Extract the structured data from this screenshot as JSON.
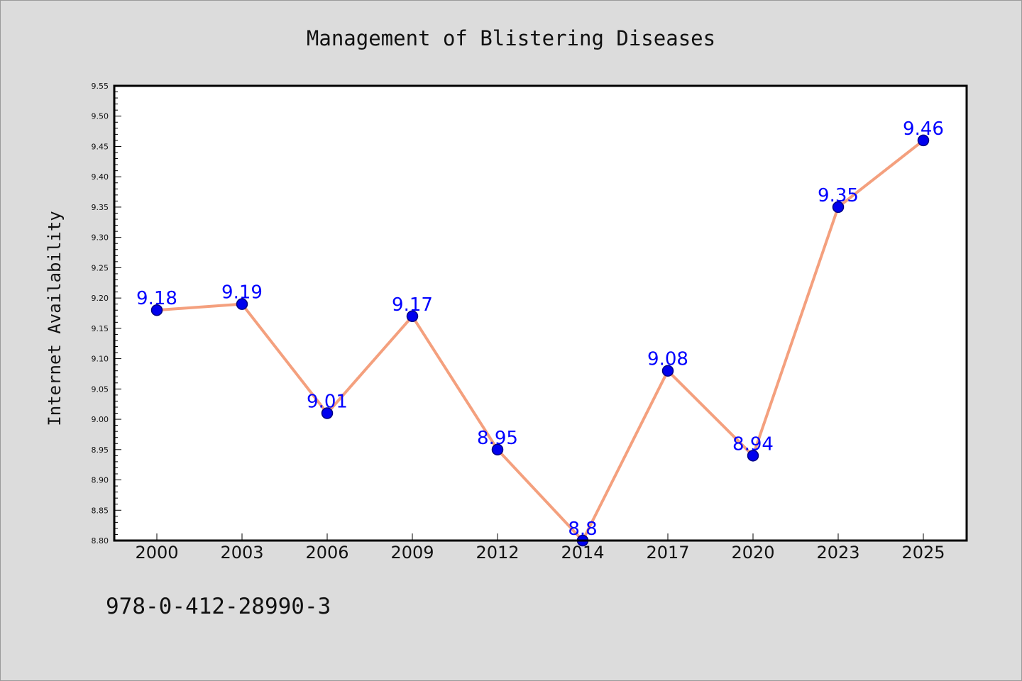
{
  "chart_data": {
    "type": "line",
    "title": "Management of Blistering Diseases",
    "ylabel": "Internet Availability",
    "xlabel": "",
    "categories": [
      "2000",
      "2003",
      "2006",
      "2009",
      "2012",
      "2014",
      "2017",
      "2020",
      "2023",
      "2025"
    ],
    "series": [
      {
        "values": [
          9.18,
          9.19,
          9.01,
          9.17,
          8.95,
          8.8,
          9.08,
          8.94,
          9.35,
          9.46
        ],
        "data_labels": [
          "9.18",
          "9.19",
          "9.01",
          "9.17",
          "8.95",
          "8.8",
          "9.08",
          "8.94",
          "9.35",
          "9.46"
        ]
      }
    ],
    "ylim": [
      8.8,
      9.55
    ],
    "yticks": [
      "8.80",
      "8.85",
      "8.90",
      "8.95",
      "9.00",
      "9.05",
      "9.10",
      "9.15",
      "9.20",
      "9.25",
      "9.30",
      "9.35",
      "9.40",
      "9.45",
      "9.50",
      "9.55"
    ],
    "grid": false,
    "legend": "none",
    "colors": {
      "line": "#f4a07e",
      "marker_fill": "#0000ee",
      "marker_edge": "#000080",
      "data_label": "#0000ff",
      "background": "#dcdcdc",
      "plot_background": "#ffffff"
    }
  },
  "footnote": "978-0-412-28990-3"
}
